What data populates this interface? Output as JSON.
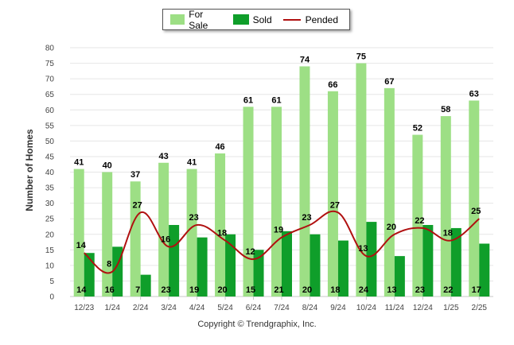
{
  "chart_data": {
    "type": "bar",
    "title": "",
    "xlabel": "",
    "ylabel": "Number of Homes",
    "ylim": [
      0,
      80
    ],
    "yticks": [
      0,
      5,
      10,
      15,
      20,
      25,
      30,
      35,
      40,
      45,
      50,
      55,
      60,
      65,
      70,
      75,
      80
    ],
    "grid": true,
    "legend_position": "top-center",
    "categories": [
      "12/23",
      "1/24",
      "2/24",
      "3/24",
      "4/24",
      "5/24",
      "6/24",
      "7/24",
      "8/24",
      "9/24",
      "10/24",
      "11/24",
      "12/24",
      "1/25",
      "2/25"
    ],
    "series": [
      {
        "name": "For Sale",
        "type": "bar",
        "color": "#9ddf85",
        "values": [
          41,
          40,
          37,
          43,
          41,
          46,
          61,
          61,
          74,
          66,
          75,
          67,
          52,
          58,
          63
        ]
      },
      {
        "name": "Sold",
        "type": "bar",
        "color": "#0f9e2a",
        "values": [
          14,
          16,
          7,
          23,
          19,
          20,
          15,
          21,
          20,
          18,
          24,
          13,
          23,
          22,
          17
        ]
      },
      {
        "name": "Pended",
        "type": "line",
        "color": "#b01010",
        "values": [
          14,
          8,
          27,
          16,
          23,
          18,
          12,
          19,
          23,
          27,
          13,
          20,
          22,
          18,
          25
        ]
      }
    ],
    "footer": "Copyright © Trendgraphix, Inc."
  }
}
